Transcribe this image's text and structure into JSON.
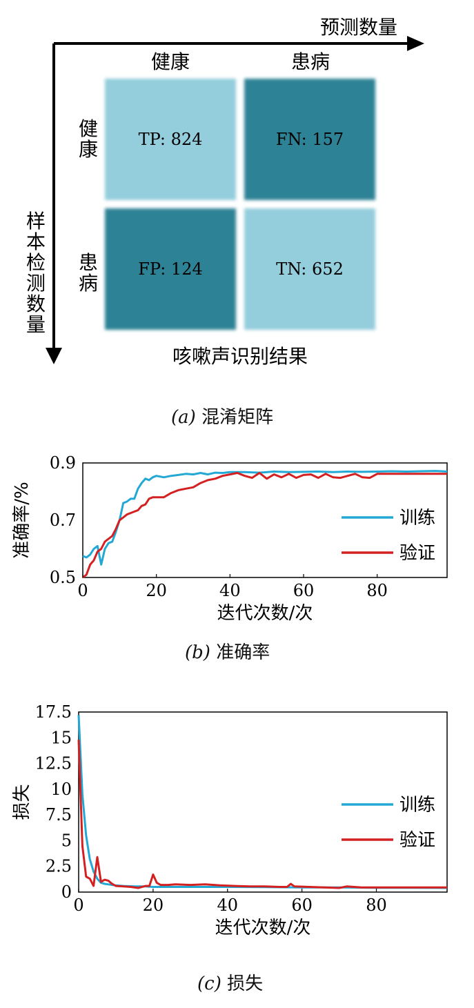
{
  "confusion": {
    "top_axis_label": "预测数量",
    "left_axis_label": "样本检测数量",
    "bottom_label": "咳嗽声识别结果",
    "col_labels": [
      "健康",
      "患病"
    ],
    "row_labels": [
      "健康",
      "患病"
    ],
    "cells": [
      {
        "name": "tp",
        "text": "TP: 824",
        "color": "#94cddc"
      },
      {
        "name": "fn",
        "text": "FN: 157",
        "color": "#2e8295"
      },
      {
        "name": "fp",
        "text": "FP: 124",
        "color": "#2e8295"
      },
      {
        "name": "tn",
        "text": "TN: 652",
        "color": "#94cddc"
      }
    ],
    "caption_letter": "(a)",
    "caption_text": "混淆矩阵"
  },
  "accuracy_caption_letter": "(b)",
  "accuracy_caption_text": "准确率",
  "loss_caption_letter": "(c)",
  "loss_caption_text": "损失",
  "colors": {
    "train": "#22a8d4",
    "val": "#d42020"
  },
  "chart_data": [
    {
      "type": "heatmap",
      "rows": [
        "健康",
        "患病"
      ],
      "cols": [
        "健康",
        "患病"
      ],
      "values": [
        [
          824,
          157
        ],
        [
          124,
          652
        ]
      ],
      "xlabel": "预测数量",
      "ylabel": "样本检测数量"
    },
    {
      "type": "line",
      "xlabel": "迭代次数/次",
      "ylabel": "准确率/%",
      "xlim": [
        0,
        99
      ],
      "ylim": [
        0.5,
        0.9
      ],
      "xticks": [
        0,
        20,
        40,
        60,
        80
      ],
      "yticks": [
        0.5,
        0.7,
        0.9
      ],
      "ytick_labels": [
        "0.5",
        "0.7",
        "0.9"
      ],
      "legend_position": "right",
      "series": [
        {
          "name": "训练",
          "x": [
            0,
            1,
            2,
            3,
            4,
            5,
            6,
            7,
            8,
            9,
            10,
            11,
            12,
            13,
            14,
            15,
            16,
            17,
            18,
            19,
            20,
            22,
            24,
            26,
            28,
            30,
            32,
            34,
            36,
            38,
            40,
            44,
            48,
            52,
            56,
            60,
            64,
            68,
            72,
            76,
            80,
            84,
            88,
            92,
            96,
            99
          ],
          "y": [
            0.575,
            0.57,
            0.58,
            0.6,
            0.61,
            0.545,
            0.6,
            0.62,
            0.625,
            0.66,
            0.7,
            0.76,
            0.765,
            0.775,
            0.775,
            0.81,
            0.83,
            0.845,
            0.84,
            0.85,
            0.855,
            0.85,
            0.855,
            0.858,
            0.862,
            0.86,
            0.865,
            0.86,
            0.866,
            0.865,
            0.868,
            0.868,
            0.866,
            0.87,
            0.868,
            0.869,
            0.87,
            0.868,
            0.87,
            0.869,
            0.87,
            0.871,
            0.87,
            0.871,
            0.872,
            0.87
          ]
        },
        {
          "name": "验证",
          "x": [
            0,
            1,
            2,
            3,
            4,
            5,
            6,
            7,
            8,
            9,
            10,
            11,
            12,
            13,
            14,
            15,
            16,
            17,
            18,
            19,
            20,
            22,
            24,
            26,
            28,
            30,
            32,
            34,
            36,
            38,
            40,
            42,
            44,
            46,
            48,
            50,
            52,
            54,
            56,
            58,
            60,
            62,
            64,
            66,
            68,
            70,
            72,
            74,
            76,
            78,
            80,
            84,
            88,
            92,
            96,
            99
          ],
          "y": [
            0.5,
            0.51,
            0.545,
            0.56,
            0.59,
            0.6,
            0.625,
            0.635,
            0.645,
            0.67,
            0.7,
            0.71,
            0.72,
            0.725,
            0.73,
            0.735,
            0.75,
            0.755,
            0.775,
            0.78,
            0.78,
            0.78,
            0.795,
            0.805,
            0.81,
            0.815,
            0.83,
            0.84,
            0.845,
            0.855,
            0.86,
            0.865,
            0.855,
            0.848,
            0.865,
            0.845,
            0.86,
            0.85,
            0.862,
            0.848,
            0.858,
            0.86,
            0.848,
            0.862,
            0.85,
            0.848,
            0.855,
            0.862,
            0.85,
            0.848,
            0.862,
            0.862,
            0.862,
            0.862,
            0.862,
            0.862
          ]
        }
      ]
    },
    {
      "type": "line",
      "xlabel": "迭代次数/次",
      "ylabel": "损失",
      "xlim": [
        0,
        99
      ],
      "ylim": [
        0,
        17.5
      ],
      "xticks": [
        0,
        20,
        40,
        60,
        80
      ],
      "yticks": [
        0,
        2.5,
        5,
        7.5,
        10,
        12.5,
        15,
        17.5
      ],
      "ytick_labels": [
        "0",
        "2.5",
        "5",
        "7.5",
        "10",
        "12.5",
        "15",
        "17.5"
      ],
      "legend_position": "right",
      "series": [
        {
          "name": "训练",
          "x": [
            0,
            1,
            2,
            3,
            4,
            5,
            6,
            7,
            8,
            9,
            10,
            12,
            15,
            18,
            20,
            25,
            30,
            40,
            50,
            60,
            70,
            80,
            90,
            99
          ],
          "y": [
            17.2,
            9.5,
            5.5,
            3.2,
            2.0,
            1.3,
            0.9,
            0.8,
            0.75,
            0.7,
            0.65,
            0.6,
            0.55,
            0.55,
            0.5,
            0.5,
            0.5,
            0.5,
            0.48,
            0.45,
            0.45,
            0.42,
            0.42,
            0.4
          ]
        },
        {
          "name": "验证",
          "x": [
            0,
            1,
            2,
            3,
            4,
            5,
            6,
            7,
            8,
            9,
            10,
            12,
            14,
            16,
            18,
            19,
            20,
            21,
            22,
            24,
            26,
            30,
            34,
            38,
            42,
            46,
            50,
            54,
            56,
            57,
            58,
            62,
            66,
            70,
            72,
            76,
            80,
            84,
            90,
            99
          ],
          "y": [
            14.8,
            4.5,
            1.5,
            1.3,
            0.6,
            3.4,
            1.0,
            1.2,
            1.1,
            0.8,
            0.6,
            0.55,
            0.5,
            0.4,
            0.6,
            0.6,
            1.7,
            0.9,
            0.7,
            0.7,
            0.75,
            0.7,
            0.75,
            0.65,
            0.6,
            0.55,
            0.55,
            0.5,
            0.5,
            0.8,
            0.55,
            0.5,
            0.45,
            0.4,
            0.55,
            0.45,
            0.45,
            0.45,
            0.45,
            0.45
          ]
        }
      ]
    }
  ]
}
